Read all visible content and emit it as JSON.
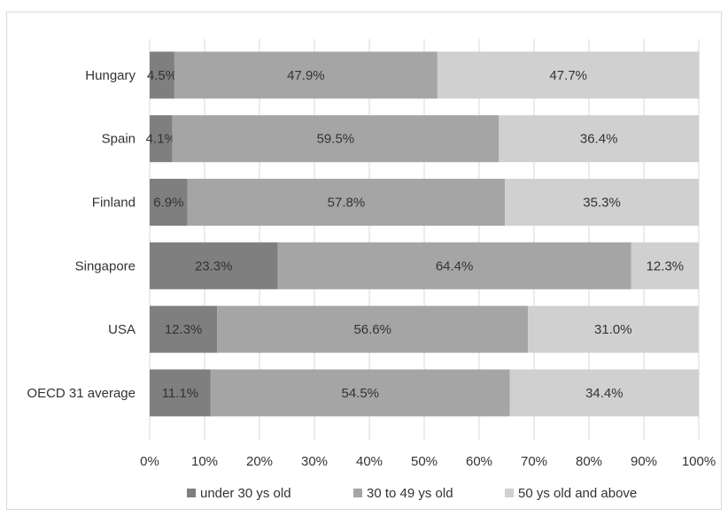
{
  "chart_data": {
    "type": "bar",
    "orientation": "horizontal",
    "stacked": "percent",
    "title": "",
    "xlabel": "",
    "ylabel": "",
    "categories": [
      "Hungary",
      "Spain",
      "Finland",
      "Singapore",
      "USA",
      "OECD 31 average"
    ],
    "series": [
      {
        "name": "under 30 ys old",
        "color": "#7f7f7f",
        "values": [
          4.5,
          4.1,
          6.9,
          23.3,
          12.3,
          11.1
        ],
        "labels": [
          "4.5%",
          "4.1%",
          "6.9%",
          "23.3%",
          "12.3%",
          "11.1%"
        ]
      },
      {
        "name": "30 to 49 ys old",
        "color": "#a5a5a5",
        "values": [
          47.9,
          59.5,
          57.8,
          64.4,
          56.6,
          54.5
        ],
        "labels": [
          "47.9%",
          "59.5%",
          "57.8%",
          "64.4%",
          "56.6%",
          "54.5%"
        ]
      },
      {
        "name": "50 ys old and above",
        "color": "#d0d0d0",
        "values": [
          47.7,
          36.4,
          35.3,
          12.3,
          31.0,
          34.4
        ],
        "labels": [
          "47.7%",
          "36.4%",
          "35.3%",
          "12.3%",
          "31.0%",
          "34.4%"
        ]
      }
    ],
    "xlim": [
      0,
      100
    ],
    "xticks": [
      0,
      10,
      20,
      30,
      40,
      50,
      60,
      70,
      80,
      90,
      100
    ],
    "xtick_labels": [
      "0%",
      "10%",
      "20%",
      "30%",
      "40%",
      "50%",
      "60%",
      "70%",
      "80%",
      "90%",
      "100%"
    ],
    "grid": "vertical",
    "gridline_color": "#d9d9d9",
    "legend": "bottom"
  }
}
